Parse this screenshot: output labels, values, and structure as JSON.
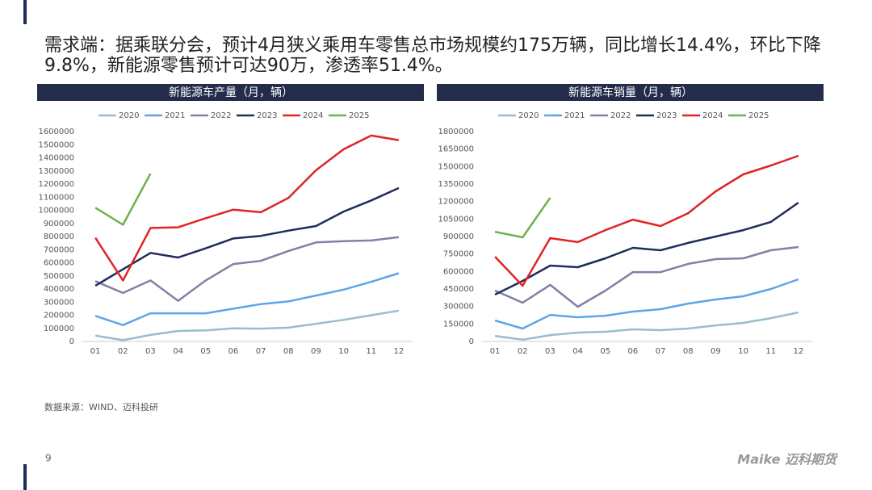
{
  "heading": "需求端：据乘联分会，预计4月狭义乘用车零售总市场规模约175万辆，同比增长14.4%，环比下降9.8%，新能源零售预计可达90万，渗透率51.4%。",
  "source": "数据来源：WIND、迈科投研",
  "page": "9",
  "logo": "Maike 迈科期货",
  "chart_data": [
    {
      "type": "line",
      "title": "新能源车产量（月，辆）",
      "categories": [
        "01",
        "02",
        "03",
        "04",
        "05",
        "06",
        "07",
        "08",
        "09",
        "10",
        "11",
        "12"
      ],
      "ylim": [
        0,
        1600000
      ],
      "yticks": [
        0,
        100000,
        200000,
        300000,
        400000,
        500000,
        600000,
        700000,
        800000,
        900000,
        1000000,
        1100000,
        1200000,
        1300000,
        1400000,
        1500000,
        1600000
      ],
      "grid": false,
      "series": [
        {
          "name": "2020",
          "color": "#9bbccb",
          "values": [
            45000,
            10000,
            50000,
            80000,
            85000,
            100000,
            98000,
            105000,
            135000,
            165000,
            200000,
            235000
          ]
        },
        {
          "name": "2021",
          "color": "#5ea5e8",
          "values": [
            195000,
            125000,
            215000,
            215000,
            215000,
            250000,
            285000,
            305000,
            350000,
            395000,
            455000,
            520000
          ]
        },
        {
          "name": "2022",
          "color": "#8080a8",
          "values": [
            460000,
            370000,
            465000,
            310000,
            465000,
            590000,
            615000,
            690000,
            755000,
            765000,
            770000,
            795000
          ]
        },
        {
          "name": "2023",
          "color": "#1f2d5a",
          "values": [
            425000,
            550000,
            675000,
            640000,
            710000,
            785000,
            805000,
            845000,
            880000,
            990000,
            1075000,
            1170000
          ]
        },
        {
          "name": "2024",
          "color": "#e02424",
          "values": [
            790000,
            465000,
            865000,
            870000,
            940000,
            1005000,
            985000,
            1095000,
            1305000,
            1465000,
            1570000,
            1535000
          ]
        },
        {
          "name": "2025",
          "color": "#6fb04f",
          "values": [
            1020000,
            890000,
            1280000,
            null,
            null,
            null,
            null,
            null,
            null,
            null,
            null,
            null
          ]
        }
      ]
    },
    {
      "type": "line",
      "title": "新能源车销量（月，辆）",
      "categories": [
        "01",
        "02",
        "03",
        "04",
        "05",
        "06",
        "07",
        "08",
        "09",
        "10",
        "11",
        "12"
      ],
      "ylim": [
        0,
        1800000
      ],
      "yticks": [
        0,
        150000,
        300000,
        450000,
        600000,
        750000,
        900000,
        1050000,
        1200000,
        1350000,
        1500000,
        1650000,
        1800000
      ],
      "grid": false,
      "series": [
        {
          "name": "2020",
          "color": "#9bbccb",
          "values": [
            48000,
            15000,
            55000,
            76000,
            83000,
            104000,
            97000,
            111000,
            138000,
            159000,
            200000,
            249000
          ]
        },
        {
          "name": "2021",
          "color": "#5ea5e8",
          "values": [
            180000,
            111000,
            228000,
            208000,
            221000,
            256000,
            277000,
            325000,
            360000,
            388000,
            450000,
            533000
          ]
        },
        {
          "name": "2022",
          "color": "#8080a8",
          "values": [
            436000,
            332000,
            485000,
            298000,
            436000,
            595000,
            595000,
            665000,
            706000,
            713000,
            782000,
            810000
          ]
        },
        {
          "name": "2023",
          "color": "#1f2d5a",
          "values": [
            402000,
            519000,
            651000,
            637000,
            713000,
            803000,
            782000,
            845000,
            900000,
            955000,
            1025000,
            1191000
          ]
        },
        {
          "name": "2024",
          "color": "#e02424",
          "values": [
            727000,
            478000,
            886000,
            852000,
            955000,
            1045000,
            990000,
            1100000,
            1288000,
            1433000,
            1509000,
            1592000
          ]
        },
        {
          "name": "2025",
          "color": "#6fb04f",
          "values": [
            941000,
            893000,
            1232000,
            null,
            null,
            null,
            null,
            null,
            null,
            null,
            null,
            null
          ]
        }
      ]
    }
  ]
}
